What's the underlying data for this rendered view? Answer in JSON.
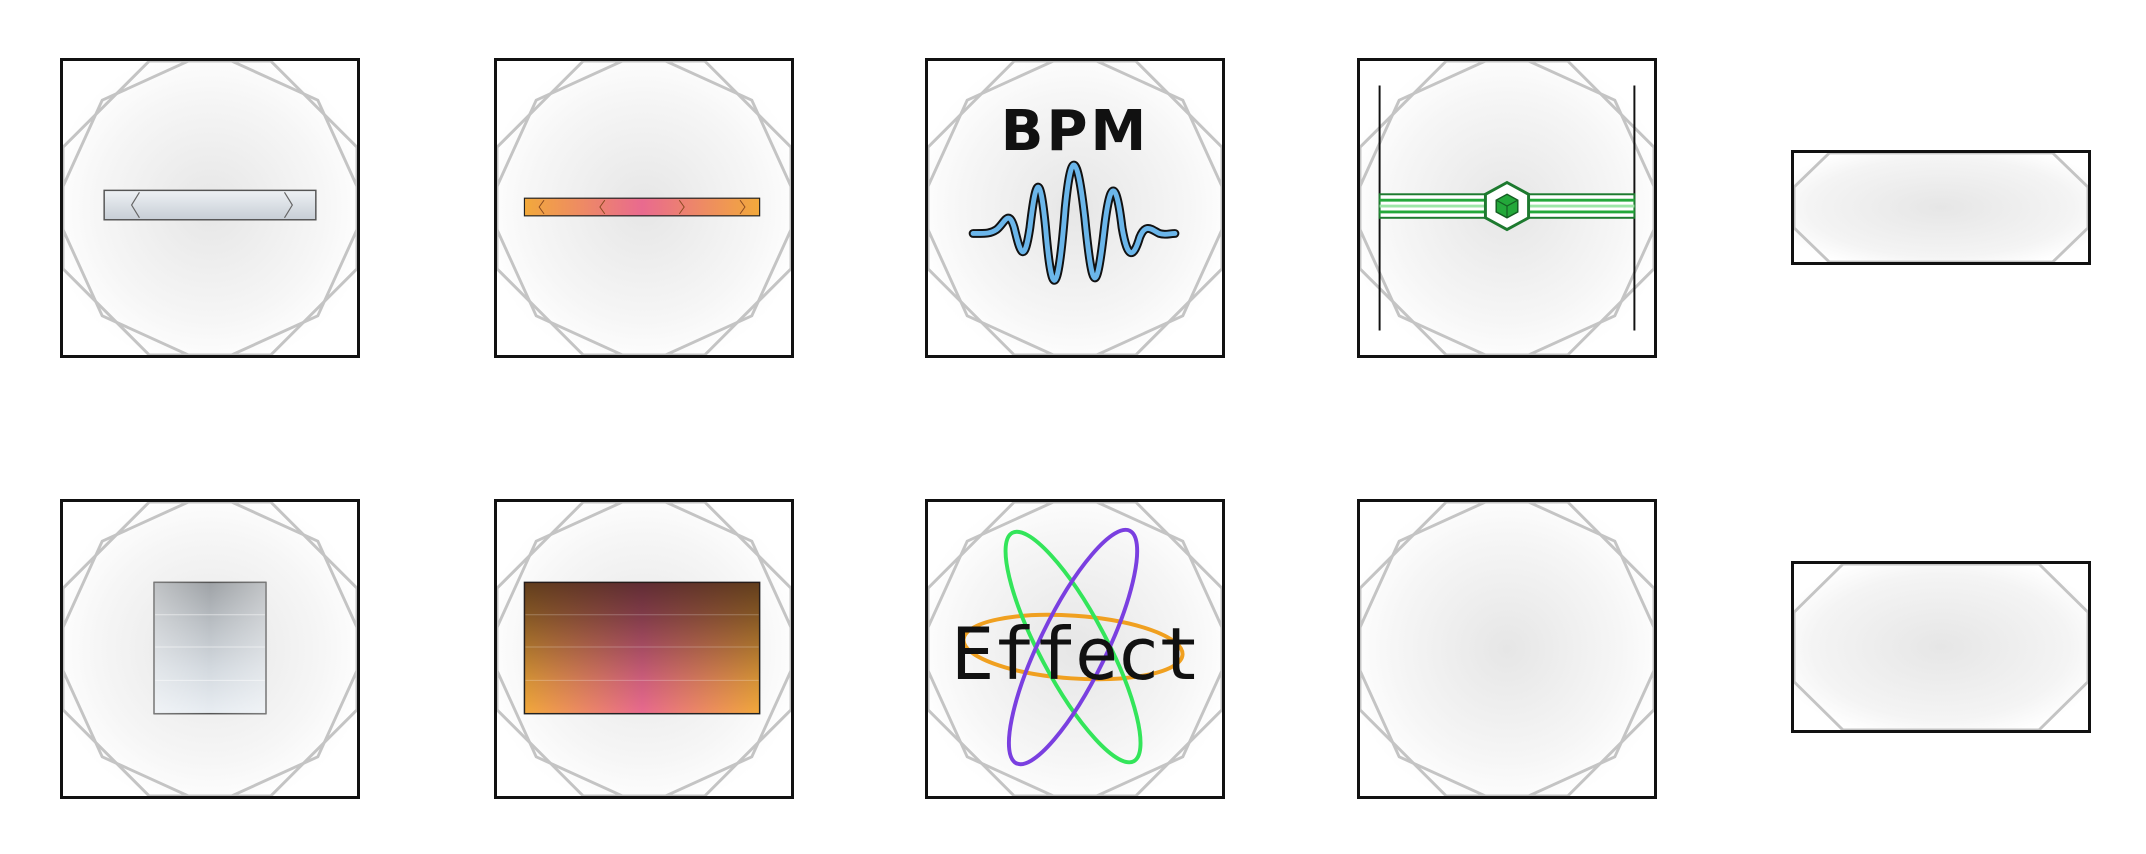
{
  "palette": {
    "frame": "#111111",
    "octagon_line": "#c4c4c4",
    "glow_center": "#e6e6e6",
    "silver": "#d8dde2",
    "warm_orange": "#f2a93b",
    "warm_pink": "#e96a8f",
    "wave_blue": "#6bb6ea",
    "accent_green": "#23a83a",
    "ring_green": "#33e55a",
    "ring_purple": "#7a3fe0",
    "ring_orange": "#f0a020"
  },
  "icons": [
    "slider-silver-icon",
    "slider-gradient-icon",
    "bpm-waveform-icon",
    "crossfader-green-icon",
    "blank-wide-panel",
    "fader-silver-icon",
    "gradient-block-icon",
    "effect-orbit-icon",
    "blank-square-panel",
    "blank-wide-panel-2"
  ],
  "bpm_tile": {
    "label": "BPM"
  },
  "effect_tile": {
    "label": "Effect"
  }
}
